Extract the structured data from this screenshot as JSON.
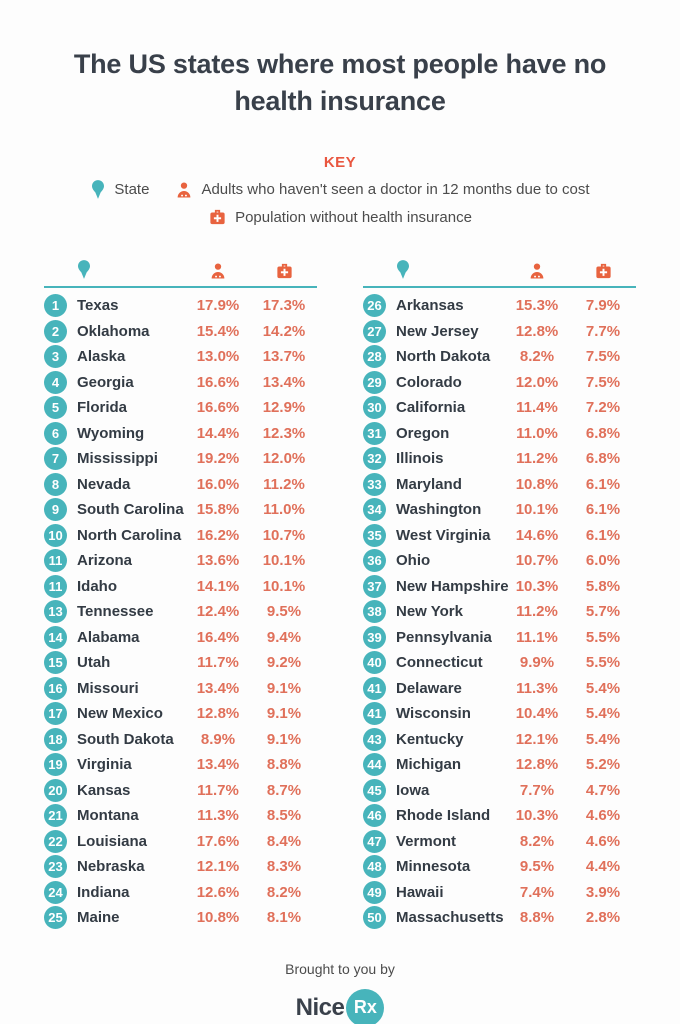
{
  "title": "The US states where most people have no health insurance",
  "key": {
    "heading": "KEY",
    "state_label": "State",
    "adults_label": "Adults who haven't seen a doctor in 12 months due to cost",
    "insurance_label": "Population without health insurance"
  },
  "chart_data": {
    "type": "table",
    "title": "The US states where most people have no health insurance",
    "columns": [
      "rank",
      "state",
      "adults_no_doctor_12mo_pct",
      "population_without_insurance_pct"
    ],
    "rows": [
      [
        "1",
        "Texas",
        "17.9%",
        "17.3%"
      ],
      [
        "2",
        "Oklahoma",
        "15.4%",
        "14.2%"
      ],
      [
        "3",
        "Alaska",
        "13.0%",
        "13.7%"
      ],
      [
        "4",
        "Georgia",
        "16.6%",
        "13.4%"
      ],
      [
        "5",
        "Florida",
        "16.6%",
        "12.9%"
      ],
      [
        "6",
        "Wyoming",
        "14.4%",
        "12.3%"
      ],
      [
        "7",
        "Mississippi",
        "19.2%",
        "12.0%"
      ],
      [
        "8",
        "Nevada",
        "16.0%",
        "11.2%"
      ],
      [
        "9",
        "South Carolina",
        "15.8%",
        "11.0%"
      ],
      [
        "10",
        "North Carolina",
        "16.2%",
        "10.7%"
      ],
      [
        "11",
        "Arizona",
        "13.6%",
        "10.1%"
      ],
      [
        "11",
        "Idaho",
        "14.1%",
        "10.1%"
      ],
      [
        "13",
        "Tennessee",
        "12.4%",
        "9.5%"
      ],
      [
        "14",
        "Alabama",
        "16.4%",
        "9.4%"
      ],
      [
        "15",
        "Utah",
        "11.7%",
        "9.2%"
      ],
      [
        "16",
        "Missouri",
        "13.4%",
        "9.1%"
      ],
      [
        "17",
        "New Mexico",
        "12.8%",
        "9.1%"
      ],
      [
        "18",
        "South Dakota",
        "8.9%",
        "9.1%"
      ],
      [
        "19",
        "Virginia",
        "13.4%",
        "8.8%"
      ],
      [
        "20",
        "Kansas",
        "11.7%",
        "8.7%"
      ],
      [
        "21",
        "Montana",
        "11.3%",
        "8.5%"
      ],
      [
        "22",
        "Louisiana",
        "17.6%",
        "8.4%"
      ],
      [
        "23",
        "Nebraska",
        "12.1%",
        "8.3%"
      ],
      [
        "24",
        "Indiana",
        "12.6%",
        "8.2%"
      ],
      [
        "25",
        "Maine",
        "10.8%",
        "8.1%"
      ],
      [
        "26",
        "Arkansas",
        "15.3%",
        "7.9%"
      ],
      [
        "27",
        "New Jersey",
        "12.8%",
        "7.7%"
      ],
      [
        "28",
        "North Dakota",
        "8.2%",
        "7.5%"
      ],
      [
        "29",
        "Colorado",
        "12.0%",
        "7.5%"
      ],
      [
        "30",
        "California",
        "11.4%",
        "7.2%"
      ],
      [
        "31",
        "Oregon",
        "11.0%",
        "6.8%"
      ],
      [
        "32",
        "Illinois",
        "11.2%",
        "6.8%"
      ],
      [
        "33",
        "Maryland",
        "10.8%",
        "6.1%"
      ],
      [
        "34",
        "Washington",
        "10.1%",
        "6.1%"
      ],
      [
        "35",
        "West Virginia",
        "14.6%",
        "6.1%"
      ],
      [
        "36",
        "Ohio",
        "10.7%",
        "6.0%"
      ],
      [
        "37",
        "New Hampshire",
        "10.3%",
        "5.8%"
      ],
      [
        "38",
        "New York",
        "11.2%",
        "5.7%"
      ],
      [
        "39",
        "Pennsylvania",
        "11.1%",
        "5.5%"
      ],
      [
        "40",
        "Connecticut",
        "9.9%",
        "5.5%"
      ],
      [
        "41",
        "Delaware",
        "11.3%",
        "5.4%"
      ],
      [
        "41",
        "Wisconsin",
        "10.4%",
        "5.4%"
      ],
      [
        "43",
        "Kentucky",
        "12.1%",
        "5.4%"
      ],
      [
        "44",
        "Michigan",
        "12.8%",
        "5.2%"
      ],
      [
        "45",
        "Iowa",
        "7.7%",
        "4.7%"
      ],
      [
        "46",
        "Rhode Island",
        "10.3%",
        "4.6%"
      ],
      [
        "47",
        "Vermont",
        "8.2%",
        "4.6%"
      ],
      [
        "48",
        "Minnesota",
        "9.5%",
        "4.4%"
      ],
      [
        "49",
        "Hawaii",
        "7.4%",
        "3.9%"
      ],
      [
        "50",
        "Massachusetts",
        "8.8%",
        "2.8%"
      ]
    ],
    "layout": {
      "split": "rows 1-25 left column, rows 26-50 right column"
    }
  },
  "footer": {
    "brought": "Brought to you by",
    "brand": {
      "nice": "Nice",
      "rx": "Rx"
    }
  },
  "colors": {
    "teal": "#47b4bb",
    "orange": "#e8633f",
    "salmon": "#e0705a",
    "key_red": "#e9563f",
    "title": "#39404a",
    "text": "#4c4c4c",
    "state": "#333b44"
  }
}
